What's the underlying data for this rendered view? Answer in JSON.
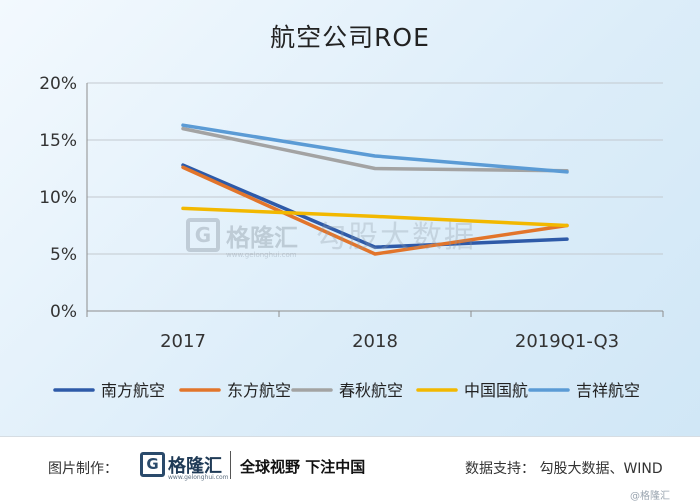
{
  "chart_data": {
    "type": "line",
    "title": "航空公司ROE",
    "categories": [
      "2017",
      "2018",
      "2019Q1-Q3"
    ],
    "y_ticks": [
      "0%",
      "5%",
      "10%",
      "15%",
      "20%"
    ],
    "ylim": [
      0,
      20
    ],
    "grid": true,
    "legend_position": "bottom",
    "series": [
      {
        "name": "南方航空",
        "color": "#2e5aa8",
        "values": [
          12.8,
          5.6,
          6.3
        ]
      },
      {
        "name": "东方航空",
        "color": "#e2752b",
        "values": [
          12.6,
          5.0,
          7.5
        ]
      },
      {
        "name": "春秋航空",
        "color": "#a3a3a3",
        "values": [
          16.0,
          12.5,
          12.3
        ]
      },
      {
        "name": "中国国航",
        "color": "#f2b800",
        "values": [
          9.0,
          8.3,
          7.5
        ]
      },
      {
        "name": "吉祥航空",
        "color": "#5b9bd5",
        "values": [
          16.3,
          13.6,
          12.2
        ]
      }
    ]
  },
  "watermark": {
    "brand": "格隆汇",
    "brand_url": "www.gelonghui.com",
    "partner": "勾股大数据"
  },
  "footer": {
    "made_by_label": "图片制作：",
    "brand": "格隆汇",
    "brand_url": "www.gelonghui.com",
    "slogan": "全球视野 下注中国",
    "source": "数据支持： 勾股大数据、WIND",
    "watermark": "@格隆汇"
  }
}
